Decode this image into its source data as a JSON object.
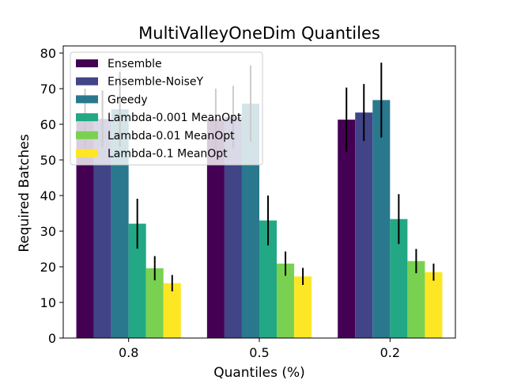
{
  "chart_data": {
    "type": "bar",
    "title": "MultiValleyOneDim Quantiles",
    "xlabel": "Quantiles (%)",
    "ylabel": "Required Batches",
    "categories": [
      "0.8",
      "0.5",
      "0.2"
    ],
    "ylim": [
      0,
      82
    ],
    "yticks": [
      0,
      10,
      20,
      30,
      40,
      50,
      60,
      70,
      80
    ],
    "grid": false,
    "legend_position": "top-left",
    "series": [
      {
        "name": "Ensemble",
        "color": "#440154",
        "values": [
          61.5,
          61.5,
          61.3
        ],
        "err": [
          8.5,
          8.5,
          9.0
        ]
      },
      {
        "name": "Ensemble-NoiseY",
        "color": "#414487",
        "values": [
          61.5,
          62.0,
          63.3
        ],
        "err": [
          8.0,
          8.8,
          8.0
        ]
      },
      {
        "name": "Greedy",
        "color": "#2a788e",
        "values": [
          64.2,
          65.8,
          66.8
        ],
        "err": [
          10.5,
          10.7,
          10.5
        ]
      },
      {
        "name": "Lambda-0.001 MeanOpt",
        "color": "#22a884",
        "values": [
          32.1,
          33.0,
          33.4
        ],
        "err": [
          7.0,
          7.0,
          7.0
        ]
      },
      {
        "name": "Lambda-0.01 MeanOpt",
        "color": "#7ad151",
        "values": [
          19.6,
          20.9,
          21.6
        ],
        "err": [
          3.4,
          3.4,
          3.4
        ]
      },
      {
        "name": "Lambda-0.1 MeanOpt",
        "color": "#fde725",
        "values": [
          15.4,
          17.3,
          18.5
        ],
        "err": [
          2.3,
          2.4,
          2.4
        ]
      }
    ]
  }
}
